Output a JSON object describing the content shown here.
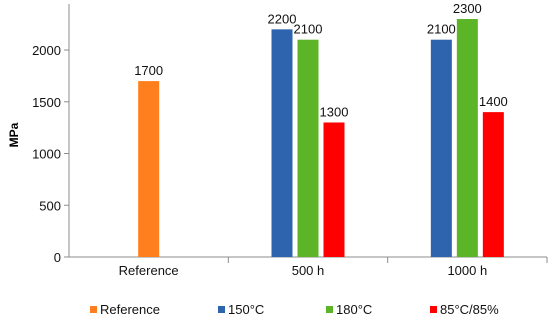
{
  "chart_data": {
    "type": "bar",
    "title": "",
    "xlabel": "",
    "ylabel": "MPa",
    "ylim": [
      0,
      2300
    ],
    "yticks": [
      0,
      500,
      1000,
      1500,
      2000
    ],
    "grid": "horizontal-off",
    "legend": "bottom",
    "categories": [
      "Reference",
      "500 h",
      "1000 h"
    ],
    "series": [
      {
        "name": "Reference",
        "color": "#FF7F1E",
        "values": [
          1700,
          null,
          null
        ]
      },
      {
        "name": "150°C",
        "color": "#2E63AE",
        "values": [
          null,
          2200,
          2100
        ]
      },
      {
        "name": "180°C",
        "color": "#5BB526",
        "values": [
          null,
          2100,
          2300
        ]
      },
      {
        "name": "85°C/85%",
        "color": "#FF0000",
        "values": [
          null,
          1300,
          1400
        ]
      }
    ]
  }
}
